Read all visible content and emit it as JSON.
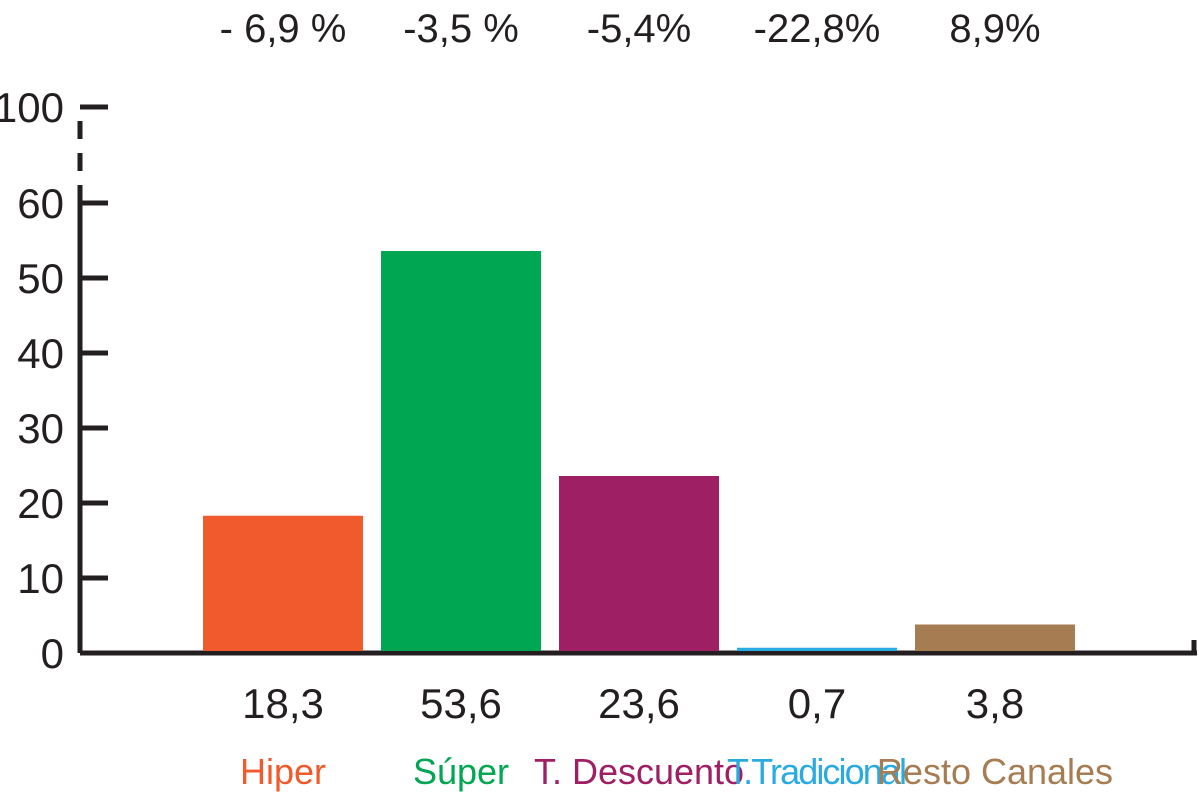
{
  "chart_data": {
    "type": "bar",
    "categories": [
      "Hiper",
      "Súper",
      "T. Descuento",
      "T.Tradicional",
      "Resto Canales"
    ],
    "values": [
      18.3,
      53.6,
      23.6,
      0.7,
      3.8
    ],
    "value_labels": [
      "18,3",
      "53,6",
      "23,6",
      "0,7",
      "3,8"
    ],
    "change_labels": [
      "- 6,9 %",
      "-3,5 %",
      "-5,4%",
      "-22,8%",
      "8,9%"
    ],
    "colors": [
      "#f05a2c",
      "#00a651",
      "#9e1f63",
      "#29abe2",
      "#a67c52"
    ],
    "y_ticks": [
      "0",
      "10",
      "20",
      "30",
      "40",
      "50",
      "60",
      "100"
    ],
    "y_tick_values": [
      0,
      10,
      20,
      30,
      40,
      50,
      60,
      100
    ],
    "ylim": [
      0,
      100
    ],
    "axis_break": "between 60 and 100",
    "title": "",
    "xlabel": "",
    "ylabel": "",
    "grid": false,
    "legend": "none"
  }
}
